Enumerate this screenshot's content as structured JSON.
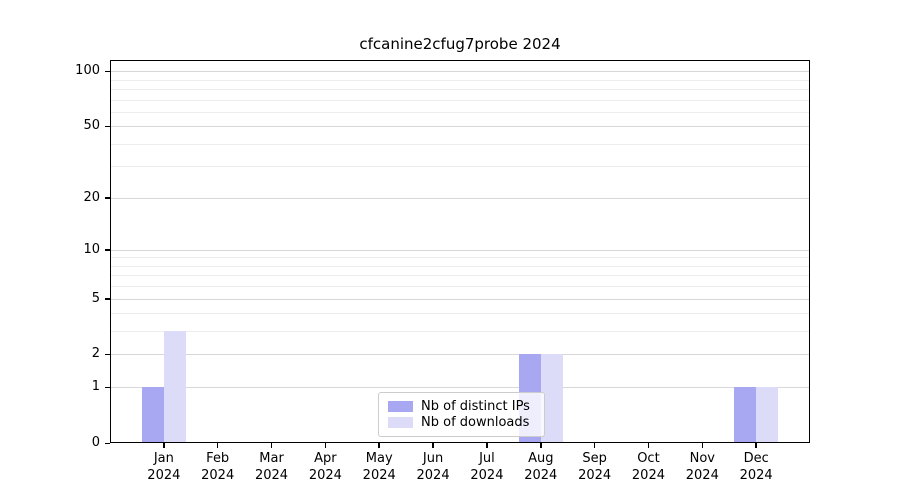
{
  "chart_data": {
    "type": "bar",
    "title": "cfcanine2cfug7probe 2024",
    "categories": [
      "Jan",
      "Feb",
      "Mar",
      "Apr",
      "May",
      "Jun",
      "Jul",
      "Aug",
      "Sep",
      "Oct",
      "Nov",
      "Dec"
    ],
    "x_tick_second_line": "2024",
    "series": [
      {
        "name": "Nb of distinct IPs",
        "color": "#a8a8f2",
        "values": [
          1,
          0,
          0,
          0,
          0,
          0,
          0,
          2,
          0,
          0,
          0,
          1
        ]
      },
      {
        "name": "Nb of downloads",
        "color": "#dcdcf9",
        "values": [
          3,
          0,
          0,
          0,
          0,
          0,
          0,
          2,
          0,
          0,
          0,
          1
        ]
      }
    ],
    "yscale": "log1p",
    "ylim": [
      0,
      115
    ],
    "y_major_ticks": [
      0,
      1,
      2,
      5,
      10,
      20,
      50,
      100
    ],
    "y_minor_ticks": [
      3,
      4,
      6,
      7,
      8,
      9,
      30,
      40,
      60,
      70,
      80,
      90
    ],
    "grid": true,
    "legend_position": "lower center",
    "xlabel": "",
    "ylabel": ""
  },
  "colors": {
    "major_grid": "#d8d8d8",
    "minor_grid": "#ededed",
    "spine": "#000000",
    "background": "#ffffff",
    "legend_border": "#cccccc"
  }
}
